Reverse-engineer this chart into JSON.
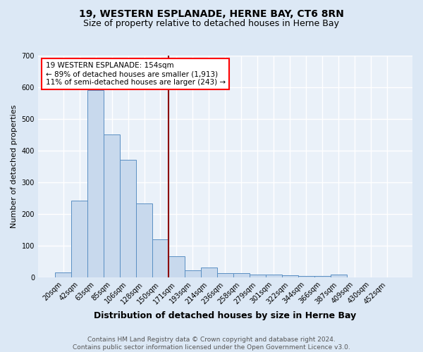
{
  "title": "19, WESTERN ESPLANADE, HERNE BAY, CT6 8RN",
  "subtitle": "Size of property relative to detached houses in Herne Bay",
  "xlabel": "Distribution of detached houses by size in Herne Bay",
  "ylabel": "Number of detached properties",
  "bar_labels": [
    "20sqm",
    "42sqm",
    "63sqm",
    "85sqm",
    "106sqm",
    "128sqm",
    "150sqm",
    "171sqm",
    "193sqm",
    "214sqm",
    "236sqm",
    "258sqm",
    "279sqm",
    "301sqm",
    "322sqm",
    "344sqm",
    "366sqm",
    "387sqm",
    "409sqm",
    "430sqm",
    "452sqm"
  ],
  "bar_values": [
    15,
    243,
    590,
    450,
    370,
    233,
    120,
    67,
    22,
    30,
    13,
    12,
    9,
    8,
    6,
    5,
    5,
    8,
    0,
    0,
    0
  ],
  "bar_color": "#c8d9ed",
  "bar_edge_color": "#5a8fc3",
  "vline_x_index": 6,
  "vline_color": "#8b0000",
  "annotation_text": "19 WESTERN ESPLANADE: 154sqm\n← 89% of detached houses are smaller (1,913)\n11% of semi-detached houses are larger (243) →",
  "annotation_box_color": "white",
  "annotation_box_edge_color": "red",
  "ylim": [
    0,
    700
  ],
  "yticks": [
    0,
    100,
    200,
    300,
    400,
    500,
    600,
    700
  ],
  "footer_text": "Contains HM Land Registry data © Crown copyright and database right 2024.\nContains public sector information licensed under the Open Government Licence v3.0.",
  "bg_color": "#dce8f5",
  "plot_bg_color": "#eaf1f9",
  "grid_color": "white",
  "title_fontsize": 10,
  "subtitle_fontsize": 9,
  "xlabel_fontsize": 9,
  "ylabel_fontsize": 8,
  "tick_fontsize": 7,
  "annotation_fontsize": 7.5,
  "footer_fontsize": 6.5
}
